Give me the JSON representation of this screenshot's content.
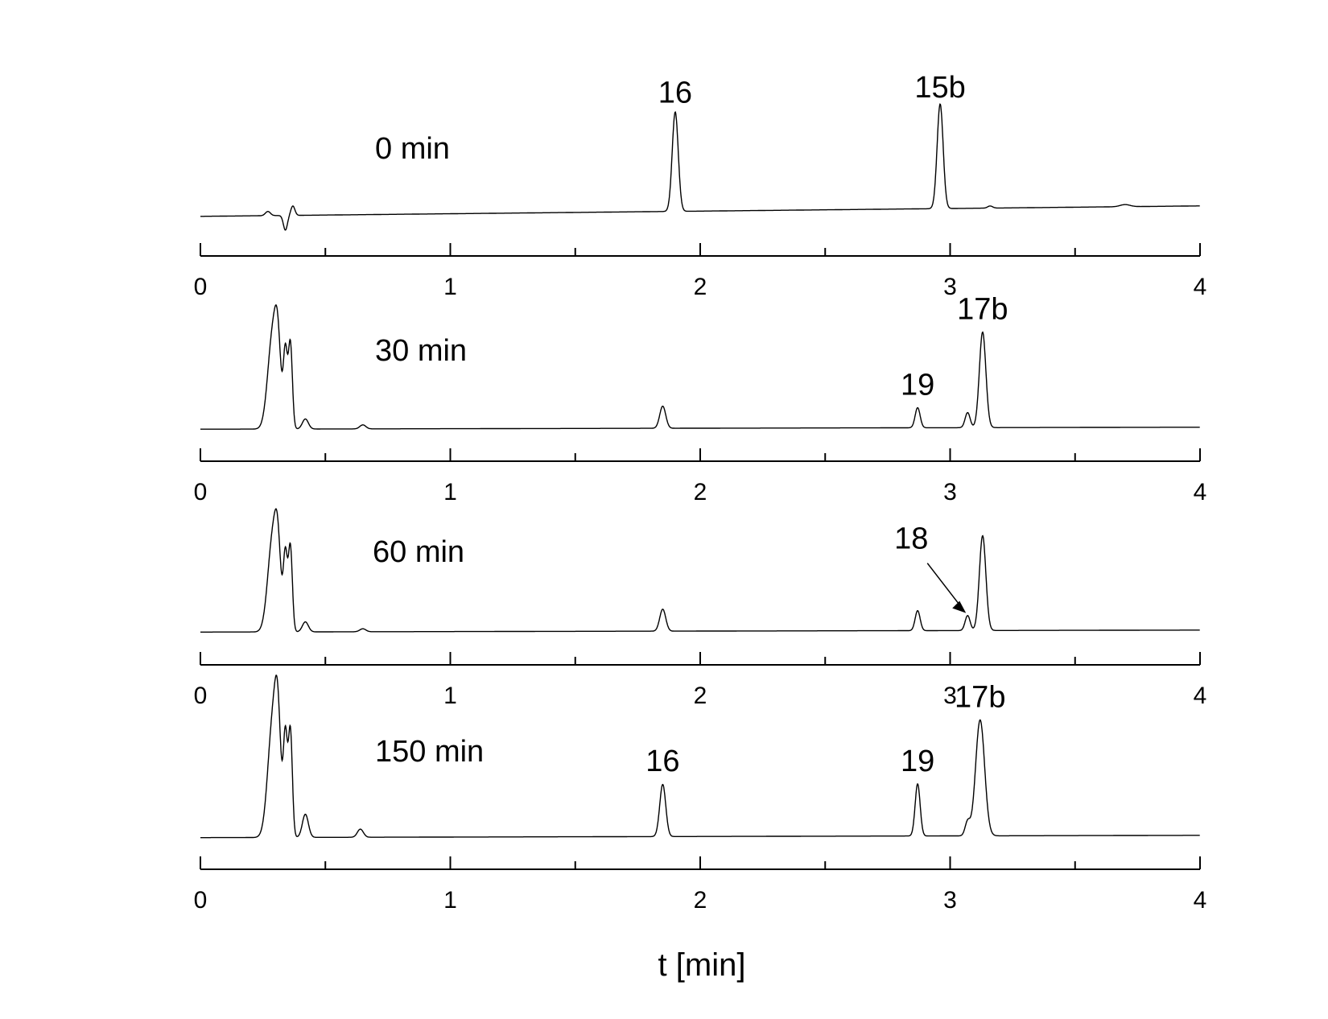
{
  "chart_data": [
    {
      "type": "line",
      "time_label": "0 min",
      "xlim": [
        0,
        4
      ],
      "ticks": [
        "0",
        "1",
        "2",
        "3",
        "4"
      ],
      "baseline": 0.04,
      "drift": 0.1,
      "peaks": [
        {
          "t": 0.27,
          "h": 0.04,
          "w": 0.01
        },
        {
          "t": 0.34,
          "h": -0.14,
          "w": 0.008
        },
        {
          "t": 0.37,
          "h": 0.09,
          "w": 0.008
        },
        {
          "t": 1.9,
          "h": 0.95,
          "w": 0.012
        },
        {
          "t": 2.96,
          "h": 1.0,
          "w": 0.012
        },
        {
          "t": 3.16,
          "h": 0.02,
          "w": 0.01
        },
        {
          "t": 3.7,
          "h": 0.02,
          "w": 0.02
        }
      ],
      "labels": [
        {
          "text": "16",
          "t": 1.9,
          "h": 0.95
        },
        {
          "text": "15b",
          "t": 2.96,
          "h": 1.0
        }
      ]
    },
    {
      "type": "line",
      "time_label": "30 min",
      "xlim": [
        0,
        4
      ],
      "ticks": [
        "0",
        "1",
        "2",
        "3",
        "4"
      ],
      "baseline": 0.03,
      "drift": 0.02,
      "peaks": [
        {
          "t": 0.29,
          "h": 0.95,
          "w": 0.02
        },
        {
          "t": 0.31,
          "h": 0.55,
          "w": 0.012
        },
        {
          "t": 0.34,
          "h": 0.75,
          "w": 0.008
        },
        {
          "t": 0.36,
          "h": 0.85,
          "w": 0.008
        },
        {
          "t": 0.42,
          "h": 0.1,
          "w": 0.012
        },
        {
          "t": 0.65,
          "h": 0.04,
          "w": 0.012
        },
        {
          "t": 1.85,
          "h": 0.22,
          "w": 0.012
        },
        {
          "t": 2.87,
          "h": 0.2,
          "w": 0.01
        },
        {
          "t": 3.07,
          "h": 0.15,
          "w": 0.01
        },
        {
          "t": 3.13,
          "h": 0.95,
          "w": 0.013
        }
      ],
      "labels": [
        {
          "text": "19",
          "t": 2.87,
          "h": 0.2
        },
        {
          "text": "17b",
          "t": 3.13,
          "h": 0.95
        }
      ]
    },
    {
      "type": "line",
      "time_label": "60 min",
      "xlim": [
        0,
        4
      ],
      "ticks": [
        "0",
        "1",
        "2",
        "3",
        "4"
      ],
      "baseline": 0.03,
      "drift": 0.02,
      "peaks": [
        {
          "t": 0.29,
          "h": 0.95,
          "w": 0.02
        },
        {
          "t": 0.31,
          "h": 0.55,
          "w": 0.012
        },
        {
          "t": 0.34,
          "h": 0.75,
          "w": 0.008
        },
        {
          "t": 0.36,
          "h": 0.85,
          "w": 0.008
        },
        {
          "t": 0.42,
          "h": 0.1,
          "w": 0.012
        },
        {
          "t": 0.65,
          "h": 0.03,
          "w": 0.012
        },
        {
          "t": 1.85,
          "h": 0.22,
          "w": 0.012
        },
        {
          "t": 2.87,
          "h": 0.2,
          "w": 0.01
        },
        {
          "t": 3.07,
          "h": 0.15,
          "w": 0.01
        },
        {
          "t": 3.13,
          "h": 0.95,
          "w": 0.013
        }
      ],
      "labels": [
        {
          "text": "18",
          "t": 3.07,
          "h": 0.15
        }
      ]
    },
    {
      "type": "line",
      "time_label": "150 min",
      "xlim": [
        0,
        4
      ],
      "ticks": [
        "0",
        "1",
        "2",
        "3",
        "4"
      ],
      "baseline": 0.03,
      "drift": 0.02,
      "peaks": [
        {
          "t": 0.29,
          "h": 1.0,
          "w": 0.02
        },
        {
          "t": 0.31,
          "h": 0.7,
          "w": 0.012
        },
        {
          "t": 0.34,
          "h": 0.85,
          "w": 0.008
        },
        {
          "t": 0.36,
          "h": 0.92,
          "w": 0.008
        },
        {
          "t": 0.42,
          "h": 0.2,
          "w": 0.012
        },
        {
          "t": 0.64,
          "h": 0.07,
          "w": 0.012
        },
        {
          "t": 1.85,
          "h": 0.45,
          "w": 0.012
        },
        {
          "t": 2.87,
          "h": 0.45,
          "w": 0.01
        },
        {
          "t": 3.07,
          "h": 0.12,
          "w": 0.01
        },
        {
          "t": 3.12,
          "h": 1.0,
          "w": 0.018
        }
      ],
      "labels": [
        {
          "text": "16",
          "t": 1.85,
          "h": 0.45
        },
        {
          "text": "19",
          "t": 2.87,
          "h": 0.45
        },
        {
          "text": "17b",
          "t": 3.12,
          "h": 1.0
        }
      ]
    }
  ],
  "x_axis_title": "t [min]"
}
